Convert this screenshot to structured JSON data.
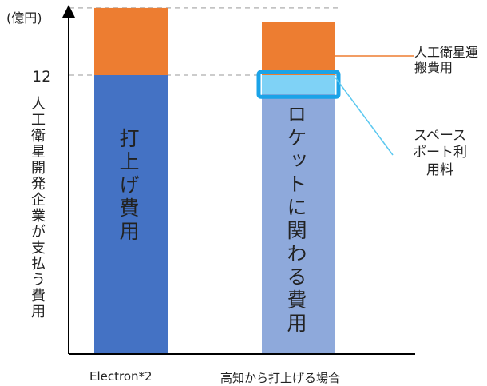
{
  "chart_data": {
    "type": "bar",
    "stacked": true,
    "y_unit_label": "(億円)",
    "ylabel": "人工衛星開発企業が支払う費用",
    "ytick_labels": [
      "12"
    ],
    "ylim": [
      0,
      16
    ],
    "reference_lines": [
      12,
      14.9
    ],
    "categories": [
      "Electron*2",
      "高知から打上げる場合"
    ],
    "series": [
      {
        "name": "",
        "segment_labels": [
          "打上げ費用",
          "ロケットに関わる費用"
        ],
        "values": [
          12,
          11.2
        ],
        "color": "#4472C4",
        "colors": [
          "#4472C4",
          "#8EA9DB"
        ]
      },
      {
        "name": "スペースポート利用料",
        "values": [
          0,
          0.8
        ],
        "color": "#7FD2F6"
      },
      {
        "name": "人工衛星運搬費用",
        "values": [
          2.9,
          2.3
        ],
        "color": "#ED7D31"
      }
    ],
    "annotations": {
      "satellite_transport": "人工衛星運搬費用",
      "spaceport_fee": "スペースポート利用料"
    },
    "grid": false,
    "legend": "callouts-right"
  }
}
